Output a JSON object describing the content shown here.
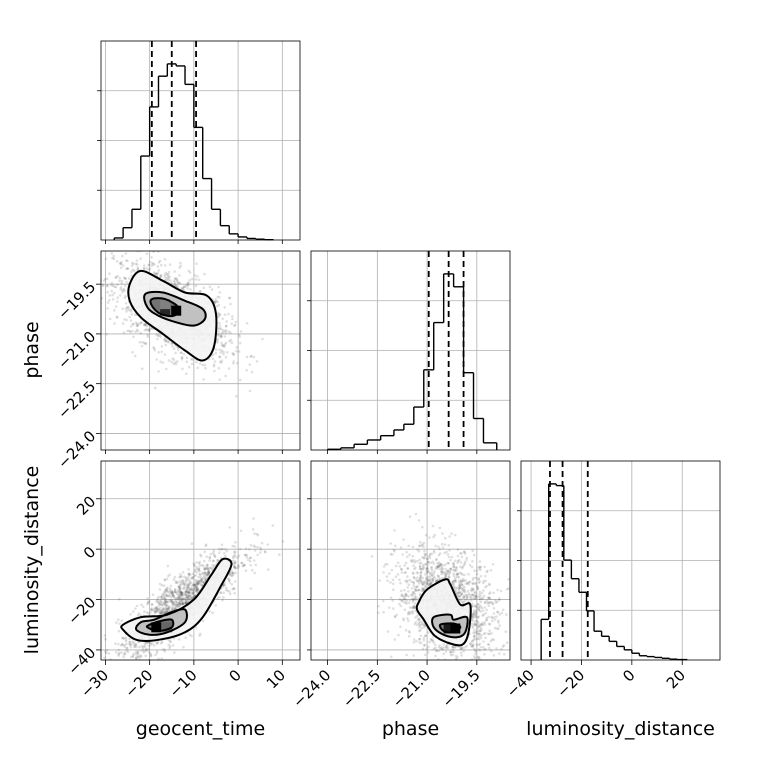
{
  "chart_data": {
    "type": "corner",
    "parameters": [
      "geocent_time",
      "phase",
      "luminosity_distance"
    ],
    "axis_labels": {
      "geocent_time": "geocent_time",
      "phase": "phase",
      "luminosity_distance": "luminosity_distance"
    },
    "ranges": {
      "geocent_time": [
        -31,
        14
      ],
      "phase": [
        -24.5,
        -18.5
      ],
      "luminosity_distance": [
        -44,
        35
      ]
    },
    "ticks": {
      "geocent_time": [
        -30,
        -20,
        -10,
        0,
        10
      ],
      "phase": [
        -24.0,
        -22.5,
        -21.0,
        -19.5
      ],
      "luminosity_distance": [
        -40,
        -20,
        0,
        20
      ]
    },
    "tick_labels": {
      "geocent_time": [
        "−30",
        "−20",
        "−10",
        "0",
        "10"
      ],
      "phase": [
        "−24.0",
        "−22.5",
        "−21.0",
        "−19.5"
      ],
      "luminosity_distance": [
        "−40",
        "−20",
        "0",
        "20"
      ]
    },
    "quantiles": {
      "geocent_time": [
        -19.5,
        -15.0,
        -9.5
      ],
      "phase": [
        -20.95,
        -20.35,
        -19.9
      ],
      "luminosity_distance": [
        -32.5,
        -27.5,
        -17.5
      ]
    },
    "histograms": {
      "geocent_time": {
        "edges": [
          -28,
          -26,
          -24,
          -22,
          -20,
          -18,
          -16,
          -14,
          -12,
          -10,
          -8,
          -6,
          -4,
          -2,
          0,
          2,
          4,
          6,
          8
        ],
        "counts": [
          2,
          12,
          30,
          82,
          130,
          160,
          172,
          170,
          152,
          110,
          60,
          30,
          14,
          6,
          3,
          1.5,
          0.8,
          0.3
        ]
      },
      "phase": {
        "edges": [
          -24.0,
          -23.6,
          -23.2,
          -22.8,
          -22.4,
          -22.0,
          -21.7,
          -21.4,
          -21.1,
          -20.8,
          -20.5,
          -20.2,
          -19.9,
          -19.6,
          -19.3,
          -18.9
        ],
        "counts": [
          1,
          3,
          8,
          14,
          20,
          28,
          36,
          60,
          112,
          178,
          246,
          228,
          108,
          44,
          10
        ]
      },
      "luminosity_distance": {
        "edges": [
          -36,
          -33,
          -30,
          -27,
          -24,
          -21,
          -18,
          -15,
          -12,
          -9,
          -6,
          -3,
          0,
          3,
          6,
          9,
          12,
          15,
          18,
          22
        ],
        "counts": [
          48,
          208,
          206,
          118,
          96,
          80,
          58,
          34,
          28,
          22,
          16,
          12,
          8,
          5,
          4,
          3,
          2,
          1,
          0.5
        ]
      }
    },
    "contours": [
      {
        "x": "geocent_time",
        "y": "phase",
        "levels": [
          [
            [
              -24.5,
              -19.5
            ],
            [
              -22,
              -19.1
            ],
            [
              -17,
              -19.4
            ],
            [
              -12,
              -19.75
            ],
            [
              -7,
              -19.85
            ],
            [
              -5,
              -20.4
            ],
            [
              -5.5,
              -21.4
            ],
            [
              -8,
              -21.8
            ],
            [
              -12,
              -21.5
            ],
            [
              -17,
              -21.0
            ],
            [
              -22,
              -20.5
            ],
            [
              -24.5,
              -20.0
            ]
          ],
          [
            [
              -21,
              -19.8
            ],
            [
              -17,
              -19.75
            ],
            [
              -12,
              -20.0
            ],
            [
              -8,
              -20.25
            ],
            [
              -7.5,
              -20.55
            ],
            [
              -10,
              -20.75
            ],
            [
              -14,
              -20.65
            ],
            [
              -18,
              -20.45
            ],
            [
              -20.5,
              -20.2
            ]
          ],
          [
            [
              -19.5,
              -19.95
            ],
            [
              -16.5,
              -19.95
            ],
            [
              -13.5,
              -20.2
            ],
            [
              -14.5,
              -20.45
            ],
            [
              -17.5,
              -20.4
            ],
            [
              -19.5,
              -20.15
            ]
          ]
        ],
        "density_cells": [
          {
            "x": -16.5,
            "y": -20.3,
            "shade": 0.15
          },
          {
            "x": -14.0,
            "y": -20.3,
            "shade": 0.0
          },
          {
            "x": -18.0,
            "y": -20.1,
            "shade": 0.45
          },
          {
            "x": -16.5,
            "y": -20.1,
            "shade": 0.5
          }
        ]
      },
      {
        "x": "geocent_time",
        "y": "luminosity_distance",
        "levels": [
          [
            [
              -26,
              -32
            ],
            [
              -23,
              -36
            ],
            [
              -18,
              -36
            ],
            [
              -12,
              -33
            ],
            [
              -8,
              -27
            ],
            [
              -4,
              -15
            ],
            [
              -1.5,
              -6
            ],
            [
              -3.5,
              -4
            ],
            [
              -6,
              -10
            ],
            [
              -10,
              -20
            ],
            [
              -16,
              -26
            ],
            [
              -22,
              -27
            ],
            [
              -26,
              -30
            ]
          ],
          [
            [
              -23,
              -32
            ],
            [
              -20,
              -34
            ],
            [
              -16,
              -33
            ],
            [
              -12,
              -29
            ],
            [
              -12,
              -24
            ],
            [
              -15,
              -25
            ],
            [
              -19,
              -28
            ],
            [
              -22,
              -29
            ]
          ],
          [
            [
              -20.5,
              -31
            ],
            [
              -18,
              -32.5
            ],
            [
              -15,
              -31
            ],
            [
              -15,
              -28
            ],
            [
              -17.5,
              -28.5
            ],
            [
              -20,
              -30
            ]
          ]
        ],
        "density_cells": [
          {
            "x": -18.5,
            "y": -31,
            "shade": 0.0
          },
          {
            "x": -16.0,
            "y": -31,
            "shade": 0.4
          }
        ]
      },
      {
        "x": "phase",
        "y": "luminosity_distance",
        "levels": [
          [
            [
              -21.25,
              -21
            ],
            [
              -21.0,
              -16
            ],
            [
              -20.45,
              -12
            ],
            [
              -20.3,
              -14
            ],
            [
              -20.0,
              -22
            ],
            [
              -19.7,
              -22
            ],
            [
              -19.75,
              -33
            ],
            [
              -19.95,
              -38
            ],
            [
              -20.4,
              -37
            ],
            [
              -20.8,
              -34
            ],
            [
              -21.1,
              -28
            ],
            [
              -21.3,
              -24
            ]
          ],
          [
            [
              -20.8,
              -27
            ],
            [
              -20.3,
              -26
            ],
            [
              -20.2,
              -28
            ],
            [
              -19.8,
              -27
            ],
            [
              -19.85,
              -33
            ],
            [
              -20.1,
              -35
            ],
            [
              -20.5,
              -34
            ],
            [
              -20.8,
              -31
            ]
          ],
          [
            [
              -20.6,
              -30
            ],
            [
              -20.2,
              -29.5
            ],
            [
              -20.0,
              -31
            ],
            [
              -20.2,
              -33
            ],
            [
              -20.5,
              -32.5
            ]
          ]
        ],
        "density_cells": [
          {
            "x": -20.35,
            "y": -31.5,
            "shade": 0.1
          },
          {
            "x": -20.15,
            "y": -31.5,
            "shade": 0.0
          }
        ]
      }
    ],
    "scatter_clouds": [
      {
        "x": "geocent_time",
        "y": "phase",
        "mx": -15,
        "my": -20.35,
        "sx": 6.5,
        "sy": 0.75,
        "rho": -0.55,
        "n": 1600
      },
      {
        "x": "geocent_time",
        "y": "luminosity_distance",
        "mx": -13,
        "my": -22,
        "sx": 7.0,
        "sy": 11.0,
        "rho": 0.85,
        "n": 1600
      },
      {
        "x": "phase",
        "y": "luminosity_distance",
        "mx": -20.4,
        "my": -22,
        "sx": 0.75,
        "sy": 11.0,
        "rho": -0.3,
        "n": 1600
      }
    ]
  }
}
